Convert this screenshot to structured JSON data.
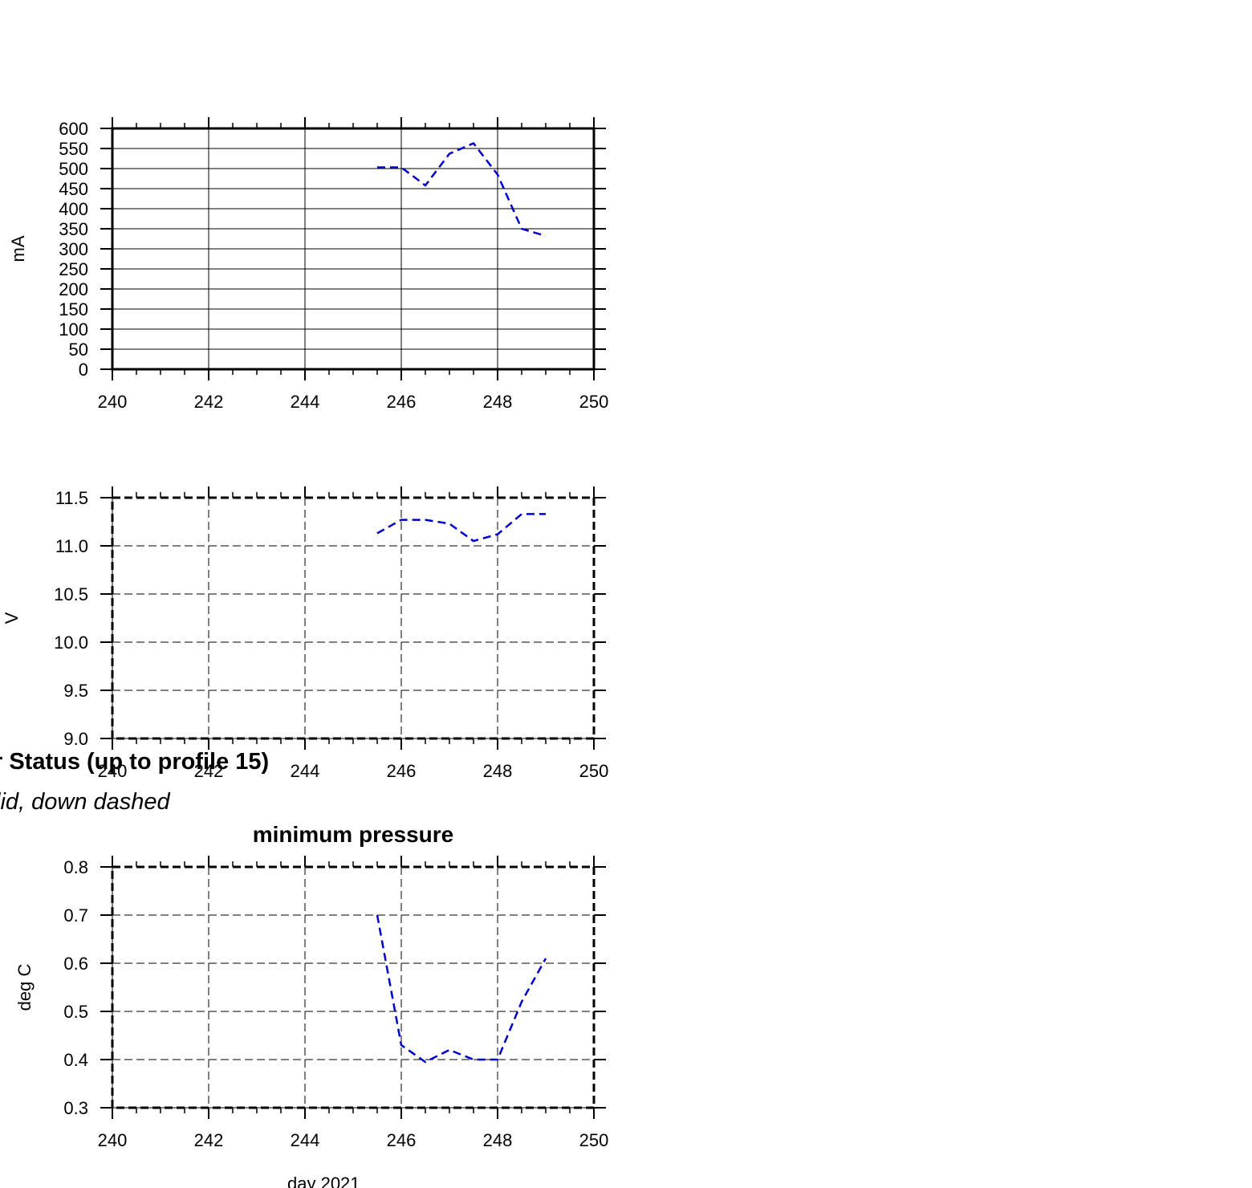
{
  "figure": {
    "title": "r Status (up to profile 15)",
    "subtitle": "lid, down dashed",
    "xlabel": "day 2021"
  },
  "chart_data": [
    {
      "type": "line",
      "title": "",
      "xlabel": "",
      "ylabel": "mA",
      "xlim": [
        240,
        250
      ],
      "ylim": [
        0,
        600
      ],
      "xticks": [
        240,
        242,
        244,
        246,
        248,
        250
      ],
      "xtick_labels": [
        "240",
        "242",
        "244",
        "246",
        "248",
        "250"
      ],
      "yticks": [
        0,
        50,
        100,
        150,
        200,
        250,
        300,
        350,
        400,
        450,
        500,
        550,
        600
      ],
      "ytick_labels": [
        "0",
        "50",
        "100",
        "150",
        "200",
        "250",
        "300",
        "350",
        "400",
        "450",
        "500",
        "550",
        "600"
      ],
      "grid": true,
      "grid_style": "solid",
      "frame_style": "solid",
      "line_color": "#0000cc",
      "series": [
        {
          "x": [
            245.5,
            246.0,
            246.5,
            247.0,
            247.5,
            248.0,
            248.5,
            249.0
          ],
          "y": [
            503,
            503,
            458,
            537,
            563,
            485,
            350,
            332
          ]
        }
      ]
    },
    {
      "type": "line",
      "title": "",
      "xlabel": "",
      "ylabel": "V",
      "xlim": [
        240,
        250
      ],
      "ylim": [
        9.0,
        11.5
      ],
      "xticks": [
        240,
        242,
        244,
        246,
        248,
        250
      ],
      "xtick_labels": [
        "240",
        "242",
        "244",
        "246",
        "248",
        "250"
      ],
      "yticks": [
        9.0,
        9.5,
        10.0,
        10.5,
        11.0,
        11.5
      ],
      "ytick_labels": [
        "9.0",
        "9.5",
        "10.0",
        "10.5",
        "11.0",
        "11.5"
      ],
      "grid": true,
      "grid_style": "dashed",
      "frame_style": "dashed",
      "line_color": "#0000cc",
      "series": [
        {
          "x": [
            245.5,
            246.0,
            246.5,
            247.0,
            247.5,
            248.0,
            248.5,
            249.0
          ],
          "y": [
            11.13,
            11.27,
            11.27,
            11.23,
            11.05,
            11.12,
            11.33,
            11.33
          ]
        }
      ]
    },
    {
      "type": "line",
      "title": "minimum pressure",
      "xlabel": "",
      "ylabel": "deg C",
      "xlim": [
        240,
        250
      ],
      "ylim": [
        0.3,
        0.8
      ],
      "xticks": [
        240,
        242,
        244,
        246,
        248,
        250
      ],
      "xtick_labels": [
        "240",
        "242",
        "244",
        "246",
        "248",
        "250"
      ],
      "yticks": [
        0.3,
        0.4,
        0.5,
        0.6,
        0.7,
        0.8
      ],
      "ytick_labels": [
        "0.3",
        "0.4",
        "0.5",
        "0.6",
        "0.7",
        "0.8"
      ],
      "grid": true,
      "grid_style": "dashed",
      "frame_style": "dashed",
      "line_color": "#0000cc",
      "series": [
        {
          "x": [
            245.5,
            246.0,
            246.5,
            247.0,
            247.5,
            248.0,
            248.5,
            249.0
          ],
          "y": [
            0.7,
            0.43,
            0.395,
            0.42,
            0.4,
            0.4,
            0.52,
            0.61
          ]
        }
      ]
    }
  ]
}
